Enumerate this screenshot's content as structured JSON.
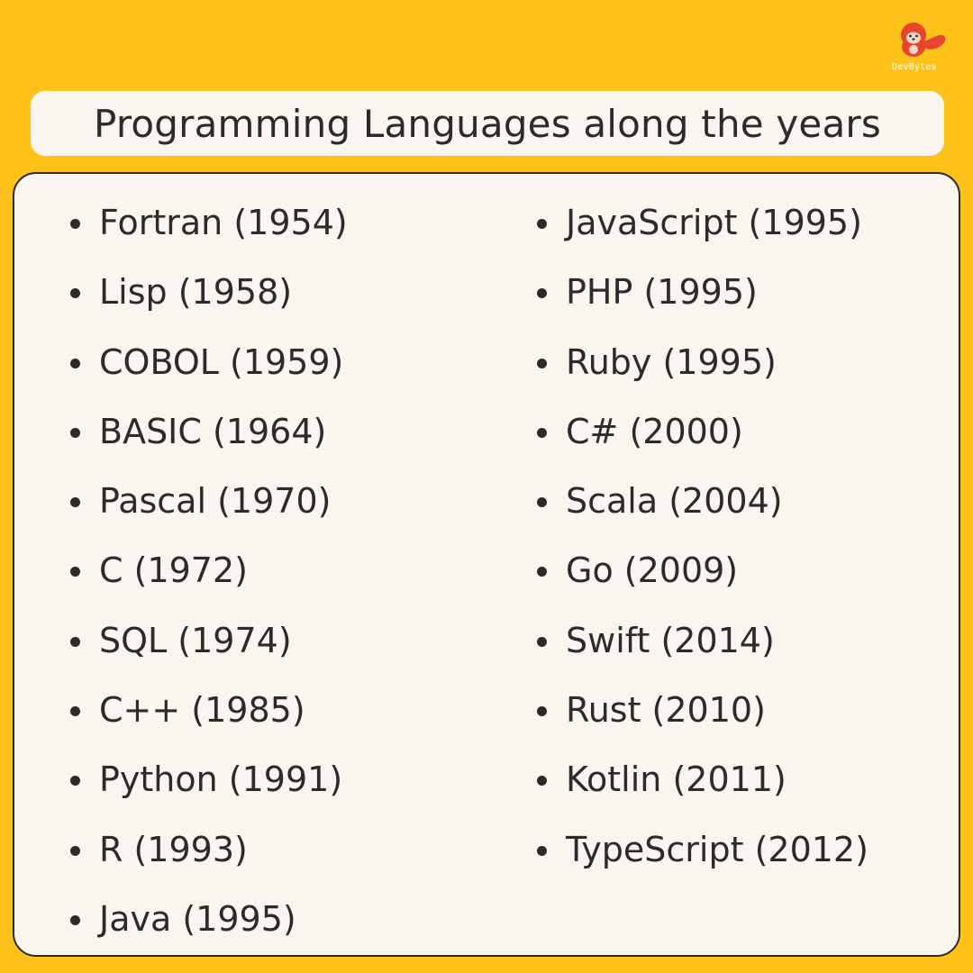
{
  "brand": {
    "name": "DevBytes",
    "accent_color": "#E8442E",
    "icon": "seal-mascot-icon"
  },
  "title": "Programming Languages along the years",
  "colors": {
    "background": "#FFC21A",
    "panel": "#FAF6EF",
    "text": "#2b2b2b"
  },
  "columns": {
    "left": [
      "Fortran (1954)",
      "Lisp (1958)",
      "COBOL (1959)",
      "BASIC (1964)",
      "Pascal (1970)",
      "C (1972)",
      "SQL (1974)",
      "C++ (1985)",
      "Python (1991)",
      "R (1993)",
      "Java (1995)"
    ],
    "right": [
      "JavaScript (1995)",
      "PHP (1995)",
      "Ruby (1995)",
      "C# (2000)",
      "Scala (2004)",
      "Go (2009)",
      "Swift (2014)",
      "Rust (2010)",
      "Kotlin (2011)",
      "TypeScript (2012)"
    ]
  }
}
